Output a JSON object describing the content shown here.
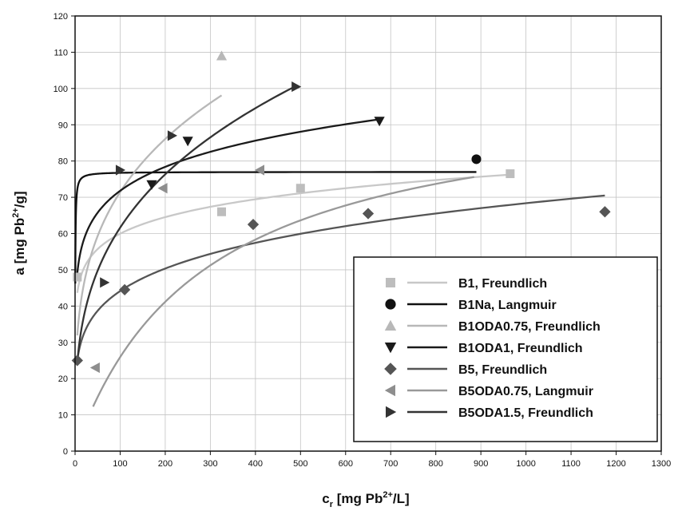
{
  "chart_data": {
    "type": "scatter",
    "x_axis": {
      "label_base": "c",
      "label_sub": "r",
      "label_rest": " [mg Pb",
      "label_sup": "2+",
      "label_end": "/L]",
      "min": 0,
      "max": 1300,
      "step": 100
    },
    "y_axis": {
      "label_base": "a [mg Pb",
      "label_sup": "2+",
      "label_end": "/g]",
      "min": 0,
      "max": 120,
      "step": 10
    },
    "grid": true,
    "legend_position": "bottom-right",
    "series": [
      {
        "name": "B1, Freundlich",
        "marker": "square",
        "color": "#bdbdbd",
        "line_color": "#c8c8c8",
        "points": [
          [
            5,
            48
          ],
          [
            325,
            66
          ],
          [
            500,
            72.5
          ],
          [
            965,
            76.5
          ]
        ],
        "fit": {
          "model": "freundlich",
          "K": 36.8,
          "n": 0.106,
          "x_range": [
            5,
            965
          ]
        }
      },
      {
        "name": "B1Na, Langmuir",
        "marker": "circle",
        "color": "#111111",
        "line_color": "#111111",
        "points": [
          [
            890,
            80.5
          ]
        ],
        "fit": {
          "model": "langmuir",
          "qmax": 77,
          "KL": 3.0,
          "x_range": [
            0.5,
            890
          ]
        }
      },
      {
        "name": "B1ODA0.75, Freundlich",
        "marker": "triangle-up",
        "color": "#b8b8b8",
        "line_color": "#b8b8b8",
        "points": [
          [
            325,
            109
          ]
        ],
        "fit": {
          "model": "freundlich",
          "K": 20.7,
          "n": 0.269,
          "x_range": [
            5,
            325
          ]
        }
      },
      {
        "name": "B1ODA1, Freundlich",
        "marker": "triangle-down",
        "color": "#1a1a1a",
        "line_color": "#1a1a1a",
        "points": [
          [
            170,
            73.5
          ],
          [
            250,
            85.5
          ],
          [
            675,
            91
          ]
        ],
        "fit": {
          "model": "freundlich",
          "K": 40.0,
          "n": 0.127,
          "x_range": [
            5,
            675
          ]
        }
      },
      {
        "name": "B5, Freundlich",
        "marker": "diamond",
        "color": "#555555",
        "line_color": "#555555",
        "points": [
          [
            5,
            25
          ],
          [
            110,
            44.5
          ],
          [
            395,
            62.5
          ],
          [
            650,
            65.5
          ],
          [
            1175,
            66
          ]
        ],
        "fit": {
          "model": "freundlich",
          "K": 18.4,
          "n": 0.19,
          "x_range": [
            5,
            1175
          ]
        }
      },
      {
        "name": "B5ODA0.75, Langmuir",
        "marker": "triangle-left",
        "color": "#8e8e8e",
        "line_color": "#999999",
        "points": [
          [
            45,
            23
          ],
          [
            195,
            72.5
          ],
          [
            410,
            77.5
          ]
        ],
        "fit": {
          "model": "langmuir",
          "qmax": 100,
          "KL": 0.0035,
          "x_range": [
            40,
            885
          ]
        }
      },
      {
        "name": "B5ODA1.5, Freundlich",
        "marker": "triangle-right",
        "color": "#333333",
        "line_color": "#333333",
        "points": [
          [
            65,
            46.5
          ],
          [
            100,
            77.5
          ],
          [
            215,
            87
          ],
          [
            490,
            100.5
          ]
        ],
        "fit": {
          "model": "freundlich",
          "K": 14.85,
          "n": 0.309,
          "x_range": [
            5,
            490
          ]
        }
      }
    ]
  }
}
